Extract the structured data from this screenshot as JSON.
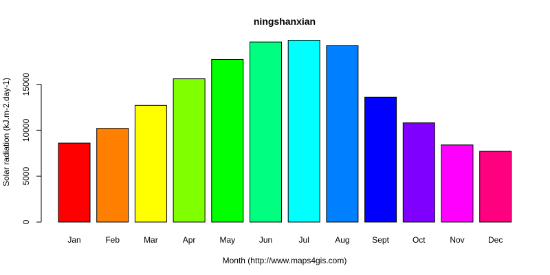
{
  "chart_data": {
    "type": "bar",
    "title": "ningshanxian",
    "xlabel": "Month (http://www.maps4gis.com)",
    "ylabel": "Solar radiation (kJ.m-2.day-1)",
    "categories": [
      "Jan",
      "Feb",
      "Mar",
      "Apr",
      "May",
      "Jun",
      "Jul",
      "Aug",
      "Sept",
      "Oct",
      "Nov",
      "Dec"
    ],
    "values": [
      8600,
      10200,
      12700,
      15600,
      17700,
      19600,
      19800,
      19200,
      13600,
      10800,
      8400,
      7700
    ],
    "colors": [
      "#FF0000",
      "#FF8000",
      "#FFFF00",
      "#80FF00",
      "#00FF00",
      "#00FF80",
      "#00FFFF",
      "#0080FF",
      "#0000FF",
      "#8000FF",
      "#FF00FF",
      "#FF0080"
    ],
    "ylim": [
      0,
      20000
    ],
    "yticks": [
      0,
      5000,
      10000,
      15000
    ],
    "ytick_labels": [
      "0",
      "5000",
      "10000",
      "15000"
    ],
    "grid": false,
    "legend": "none"
  }
}
